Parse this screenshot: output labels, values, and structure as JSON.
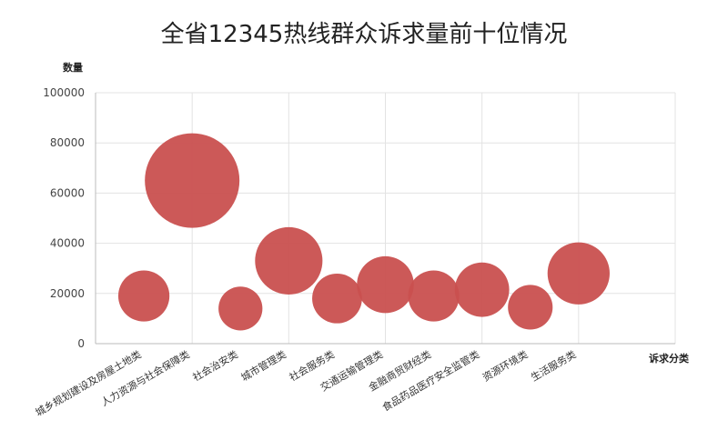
{
  "chart_data": {
    "type": "bubble",
    "title": "全省12345热线群众诉求量前十位情况",
    "y_label": "数量",
    "x_label": "诉求分类",
    "categories": [
      "城乡规划建设及房屋土地类",
      "人力资源与社会保障类",
      "社会治安类",
      "城市管理类",
      "社会服务类",
      "交通运输管理类",
      "金融商贸财经类",
      "食品药品医疗安全监管类",
      "资源环境类",
      "生活服务类"
    ],
    "values": [
      19000,
      65000,
      14000,
      33000,
      18000,
      23500,
      19000,
      21500,
      14500,
      28000
    ],
    "color": "#c9504f",
    "xlim": [
      0,
      12
    ],
    "xticks": [
      0,
      2,
      4,
      6,
      8,
      10,
      12
    ],
    "ylim": [
      0,
      100000
    ],
    "yticks": [
      0,
      20000,
      40000,
      60000,
      80000,
      100000
    ],
    "grid": true
  }
}
